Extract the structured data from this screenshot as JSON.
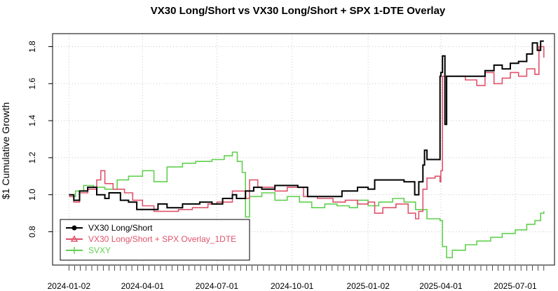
{
  "chart_data": {
    "type": "line",
    "title": "VX30 Long/Short vs VX30 Long/Short + SPX 1-DTE Overlay",
    "xlabel": "",
    "ylabel": "$1 Cumulative Growth",
    "x_ticks": [
      "2024-01-02",
      "2024-04-01",
      "2024-07-01",
      "2024-10-01",
      "2025-01-02",
      "2025-04-01",
      "2025-07-01"
    ],
    "y_ticks": [
      "0.8",
      "1.0",
      "1.2",
      "1.4",
      "1.6",
      "1.8"
    ],
    "xlim": [
      "2023-12-13",
      "2025-08-18"
    ],
    "ylim": [
      0.62,
      1.87
    ],
    "grid": true,
    "legend_position": "bottom-left",
    "series": [
      {
        "name": "VX30 Long/Short",
        "color": "#000000",
        "marker": "circle",
        "points": [
          [
            "2024-01-02",
            1.0
          ],
          [
            "2024-01-08",
            0.97
          ],
          [
            "2024-01-15",
            1.02
          ],
          [
            "2024-01-25",
            1.04
          ],
          [
            "2024-02-05",
            1.0
          ],
          [
            "2024-02-15",
            0.98
          ],
          [
            "2024-02-20",
            1.01
          ],
          [
            "2024-03-05",
            0.97
          ],
          [
            "2024-03-15",
            0.96
          ],
          [
            "2024-03-25",
            0.92
          ],
          [
            "2024-04-08",
            0.92
          ],
          [
            "2024-04-20",
            0.95
          ],
          [
            "2024-05-01",
            0.93
          ],
          [
            "2024-05-20",
            0.95
          ],
          [
            "2024-06-10",
            0.96
          ],
          [
            "2024-06-25",
            0.95
          ],
          [
            "2024-07-08",
            0.98
          ],
          [
            "2024-07-20",
            1.0
          ],
          [
            "2024-07-25",
            0.98
          ],
          [
            "2024-08-05",
            1.02
          ],
          [
            "2024-08-15",
            1.04
          ],
          [
            "2024-08-25",
            1.03
          ],
          [
            "2024-09-10",
            1.05
          ],
          [
            "2024-09-25",
            1.05
          ],
          [
            "2024-10-08",
            1.04
          ],
          [
            "2024-10-20",
            0.99
          ],
          [
            "2024-11-15",
            0.99
          ],
          [
            "2024-12-01",
            1.02
          ],
          [
            "2024-12-20",
            1.04
          ],
          [
            "2025-01-02",
            1.03
          ],
          [
            "2025-01-10",
            1.08
          ],
          [
            "2025-02-01",
            1.08
          ],
          [
            "2025-02-15",
            1.07
          ],
          [
            "2025-02-28",
            1.0
          ],
          [
            "2025-03-05",
            1.07
          ],
          [
            "2025-03-10",
            1.16
          ],
          [
            "2025-03-12",
            1.24
          ],
          [
            "2025-03-15",
            1.19
          ],
          [
            "2025-03-28",
            1.19
          ],
          [
            "2025-03-31",
            1.64
          ],
          [
            "2025-04-01",
            1.66
          ],
          [
            "2025-04-03",
            1.75
          ],
          [
            "2025-04-06",
            1.38
          ],
          [
            "2025-04-08",
            1.64
          ],
          [
            "2025-05-01",
            1.64
          ],
          [
            "2025-05-15",
            1.64
          ],
          [
            "2025-05-25",
            1.67
          ],
          [
            "2025-06-05",
            1.7
          ],
          [
            "2025-06-15",
            1.68
          ],
          [
            "2025-06-25",
            1.71
          ],
          [
            "2025-07-05",
            1.72
          ],
          [
            "2025-07-15",
            1.76
          ],
          [
            "2025-07-22",
            1.82
          ],
          [
            "2025-07-28",
            1.78
          ],
          [
            "2025-08-01",
            1.83
          ],
          [
            "2025-08-05",
            1.83
          ]
        ]
      },
      {
        "name": "VX30 Long/Short + SPX Overlay_1DTE",
        "color": "#DF536B",
        "marker": "triangle",
        "points": [
          [
            "2024-01-02",
            0.99
          ],
          [
            "2024-01-08",
            0.96
          ],
          [
            "2024-01-15",
            1.01
          ],
          [
            "2024-01-25",
            1.03
          ],
          [
            "2024-02-05",
            1.08
          ],
          [
            "2024-02-10",
            1.13
          ],
          [
            "2024-02-15",
            1.06
          ],
          [
            "2024-02-25",
            1.03
          ],
          [
            "2024-03-10",
            1.01
          ],
          [
            "2024-03-20",
            0.97
          ],
          [
            "2024-04-01",
            0.94
          ],
          [
            "2024-04-15",
            0.91
          ],
          [
            "2024-05-01",
            0.91
          ],
          [
            "2024-05-15",
            0.92
          ],
          [
            "2024-06-01",
            0.93
          ],
          [
            "2024-06-20",
            0.95
          ],
          [
            "2024-07-01",
            0.96
          ],
          [
            "2024-07-20",
            1.02
          ],
          [
            "2024-08-05",
            0.98
          ],
          [
            "2024-08-10",
            1.08
          ],
          [
            "2024-08-20",
            1.04
          ],
          [
            "2024-09-10",
            1.02
          ],
          [
            "2024-09-25",
            1.04
          ],
          [
            "2024-10-15",
            0.99
          ],
          [
            "2024-11-01",
            0.98
          ],
          [
            "2024-11-20",
            0.96
          ],
          [
            "2024-12-05",
            0.97
          ],
          [
            "2024-12-20",
            0.95
          ],
          [
            "2025-01-02",
            0.96
          ],
          [
            "2025-01-10",
            0.9
          ],
          [
            "2025-01-20",
            0.93
          ],
          [
            "2025-02-05",
            0.95
          ],
          [
            "2025-02-20",
            0.9
          ],
          [
            "2025-03-01",
            0.87
          ],
          [
            "2025-03-05",
            0.91
          ],
          [
            "2025-03-10",
            1.03
          ],
          [
            "2025-03-15",
            1.09
          ],
          [
            "2025-03-25",
            1.1
          ],
          [
            "2025-03-31",
            1.07
          ],
          [
            "2025-04-01",
            1.13
          ],
          [
            "2025-04-03",
            1.64
          ],
          [
            "2025-04-15",
            1.64
          ],
          [
            "2025-05-01",
            1.62
          ],
          [
            "2025-05-15",
            1.59
          ],
          [
            "2025-05-25",
            1.66
          ],
          [
            "2025-06-05",
            1.6
          ],
          [
            "2025-06-15",
            1.63
          ],
          [
            "2025-06-25",
            1.66
          ],
          [
            "2025-07-05",
            1.64
          ],
          [
            "2025-07-15",
            1.68
          ],
          [
            "2025-07-25",
            1.65
          ],
          [
            "2025-07-30",
            1.8
          ],
          [
            "2025-08-05",
            1.74
          ]
        ]
      },
      {
        "name": "SVXY",
        "color": "#61D04F",
        "marker": "plus",
        "points": [
          [
            "2024-01-02",
            0.99
          ],
          [
            "2024-01-10",
            1.02
          ],
          [
            "2024-01-20",
            1.05
          ],
          [
            "2024-02-01",
            1.04
          ],
          [
            "2024-02-15",
            1.03
          ],
          [
            "2024-03-01",
            1.08
          ],
          [
            "2024-03-15",
            1.1
          ],
          [
            "2024-04-01",
            1.13
          ],
          [
            "2024-04-15",
            1.07
          ],
          [
            "2024-05-01",
            1.15
          ],
          [
            "2024-05-20",
            1.17
          ],
          [
            "2024-06-05",
            1.18
          ],
          [
            "2024-06-25",
            1.19
          ],
          [
            "2024-07-10",
            1.21
          ],
          [
            "2024-07-20",
            1.23
          ],
          [
            "2024-07-26",
            1.18
          ],
          [
            "2024-08-01",
            1.12
          ],
          [
            "2024-08-05",
            0.88
          ],
          [
            "2024-08-10",
            0.99
          ],
          [
            "2024-08-25",
            1.01
          ],
          [
            "2024-09-10",
            0.97
          ],
          [
            "2024-09-25",
            0.99
          ],
          [
            "2024-10-10",
            0.96
          ],
          [
            "2024-10-25",
            0.93
          ],
          [
            "2024-11-10",
            0.95
          ],
          [
            "2024-11-25",
            0.94
          ],
          [
            "2024-12-10",
            0.93
          ],
          [
            "2024-12-20",
            0.97
          ],
          [
            "2025-01-02",
            0.94
          ],
          [
            "2025-01-15",
            0.96
          ],
          [
            "2025-02-01",
            0.98
          ],
          [
            "2025-02-15",
            0.96
          ],
          [
            "2025-03-01",
            0.92
          ],
          [
            "2025-03-15",
            0.87
          ],
          [
            "2025-03-31",
            0.86
          ],
          [
            "2025-04-03",
            0.72
          ],
          [
            "2025-04-08",
            0.66
          ],
          [
            "2025-04-15",
            0.7
          ],
          [
            "2025-05-01",
            0.73
          ],
          [
            "2025-05-15",
            0.75
          ],
          [
            "2025-06-01",
            0.77
          ],
          [
            "2025-06-15",
            0.79
          ],
          [
            "2025-07-01",
            0.81
          ],
          [
            "2025-07-15",
            0.84
          ],
          [
            "2025-07-25",
            0.86
          ],
          [
            "2025-08-01",
            0.9
          ],
          [
            "2025-08-05",
            0.91
          ]
        ]
      }
    ]
  }
}
